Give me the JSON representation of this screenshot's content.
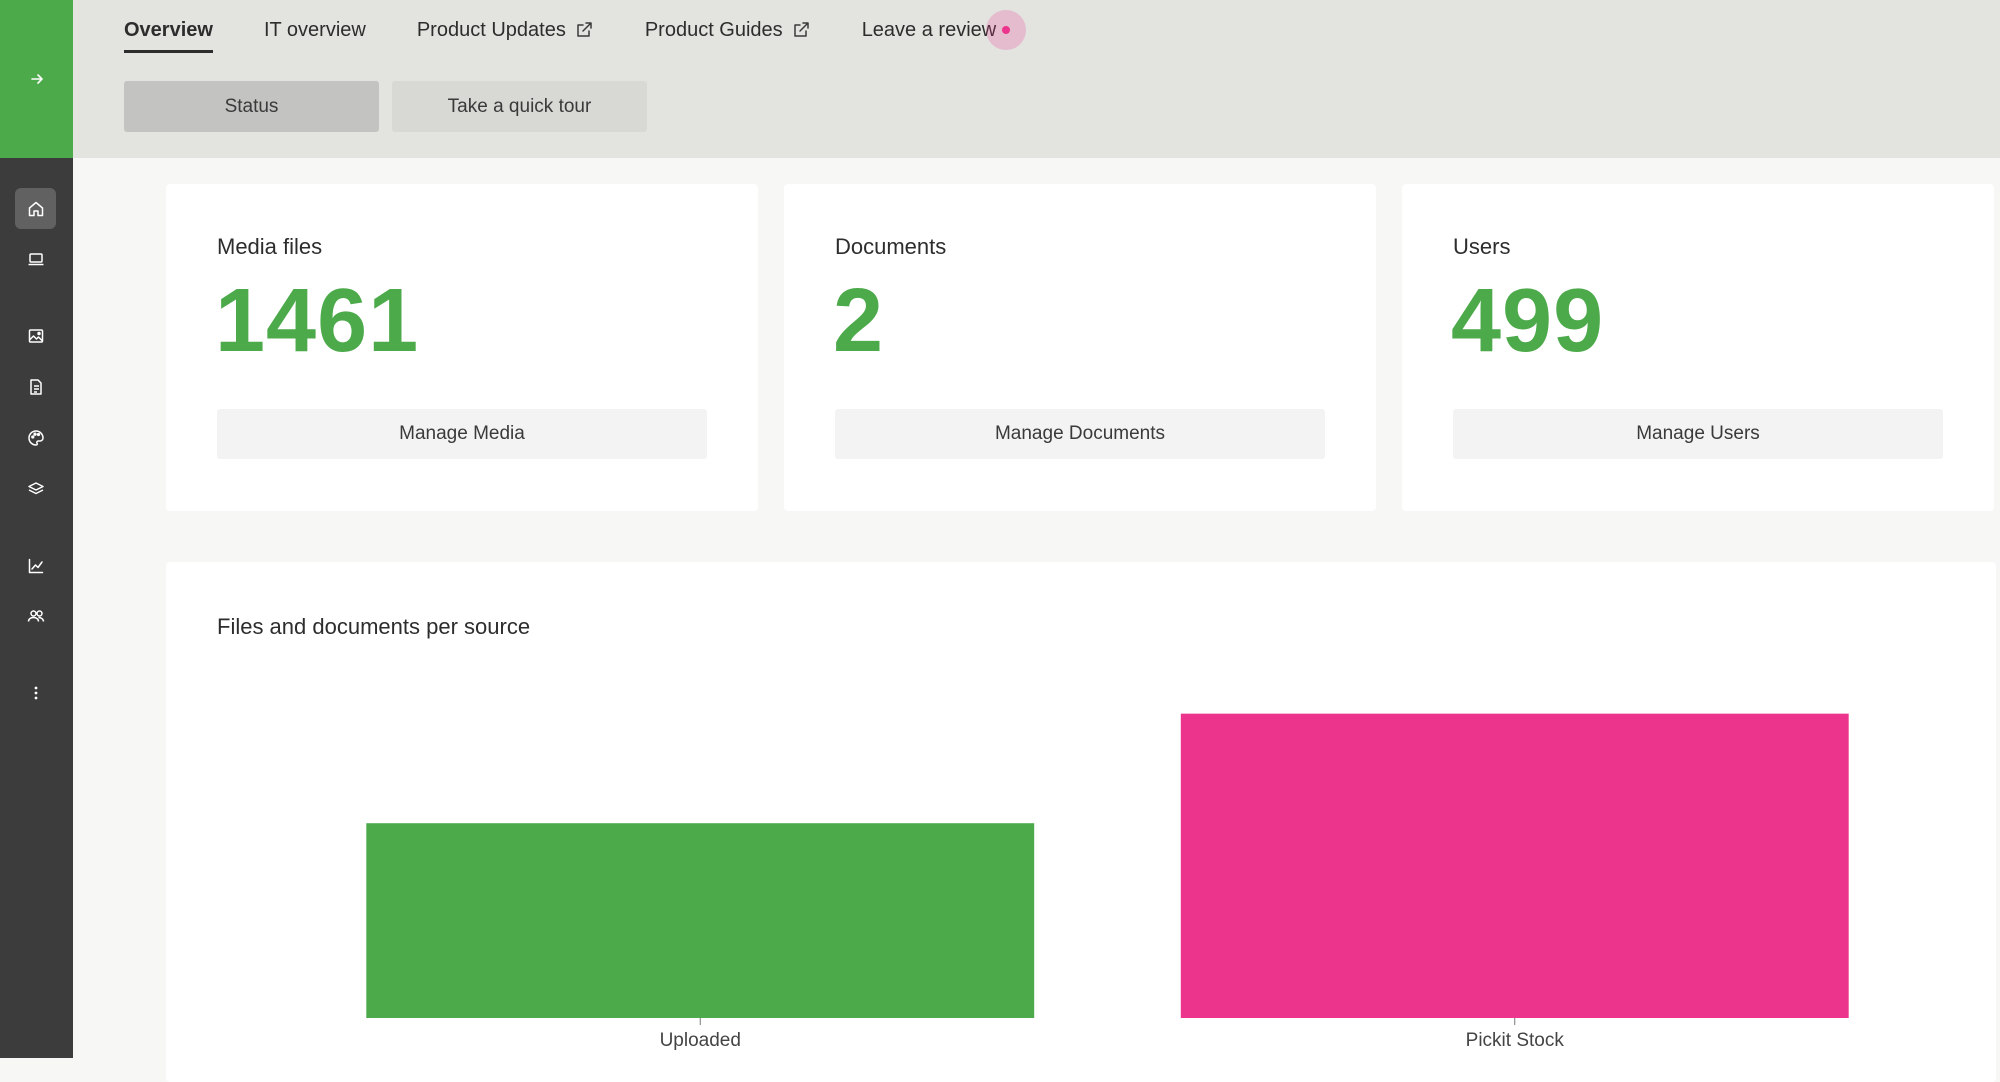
{
  "sidebar": {
    "expand_icon": "arrow-right-icon",
    "items": [
      {
        "name": "home",
        "icon": "home-icon",
        "active": true
      },
      {
        "name": "devices",
        "icon": "laptop-icon",
        "active": false
      },
      {
        "name": "media",
        "icon": "image-icon",
        "active": false
      },
      {
        "name": "documents",
        "icon": "document-icon",
        "active": false
      },
      {
        "name": "brand",
        "icon": "palette-icon",
        "active": false
      },
      {
        "name": "layers",
        "icon": "layers-icon",
        "active": false
      },
      {
        "name": "analytics",
        "icon": "chart-icon",
        "active": false
      },
      {
        "name": "users",
        "icon": "users-icon",
        "active": false
      },
      {
        "name": "more",
        "icon": "more-vertical-icon",
        "active": false
      }
    ]
  },
  "header": {
    "tabs": [
      {
        "label": "Overview",
        "active": true
      },
      {
        "label": "IT overview"
      },
      {
        "label": "Product Updates",
        "external": true
      },
      {
        "label": "Product Guides",
        "external": true
      },
      {
        "label": "Leave a review",
        "notification": true
      }
    ],
    "status_button": "Status",
    "tour_button": "Take a quick tour"
  },
  "stats": [
    {
      "title": "Media files",
      "value": "1461",
      "button": "Manage Media"
    },
    {
      "title": "Documents",
      "value": "2",
      "button": "Manage Documents"
    },
    {
      "title": "Users",
      "value": "499",
      "button": "Manage Users"
    }
  ],
  "colors": {
    "brand_green": "#4caa4a",
    "accent_pink": "#ec348d"
  },
  "chart_data": {
    "type": "bar",
    "title": "Files and documents per source",
    "categories": [
      "Uploaded",
      "Pickit Stock"
    ],
    "values": [
      0.64,
      1.0
    ],
    "colors": [
      "#4caa4a",
      "#ec348d"
    ],
    "ylim": [
      0,
      1.15
    ]
  }
}
